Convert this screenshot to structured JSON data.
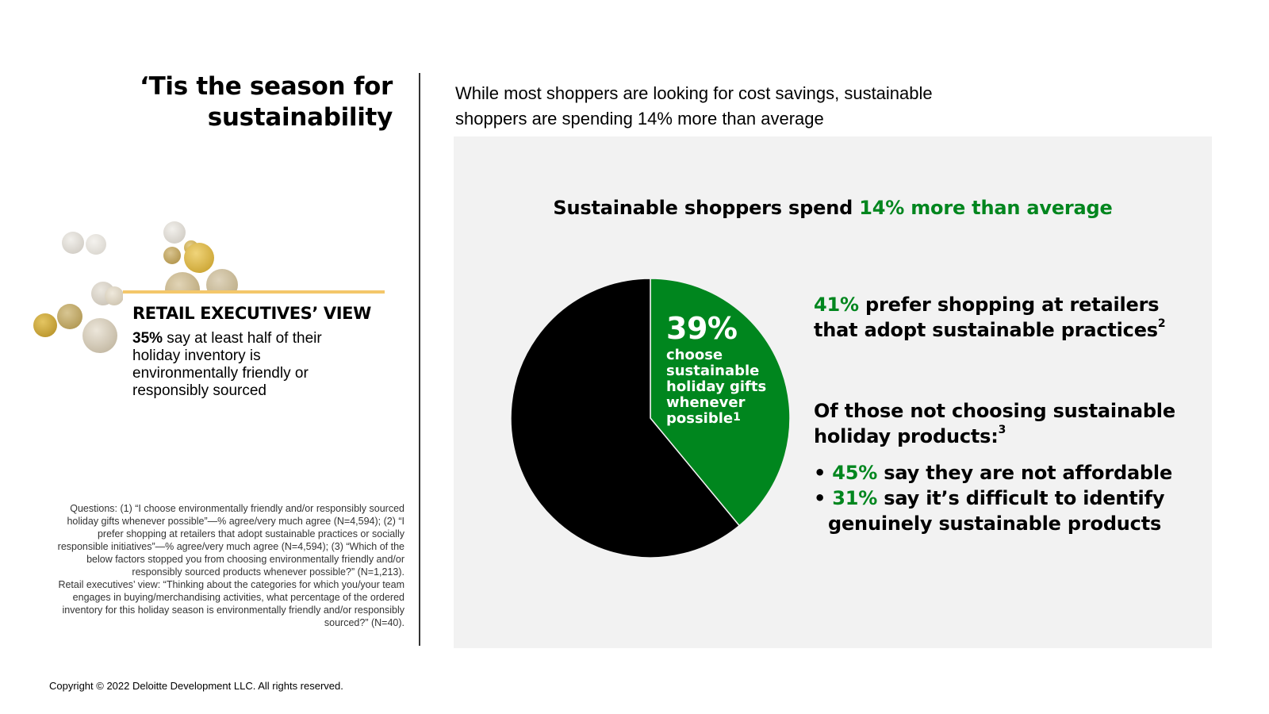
{
  "title": {
    "line1": "‘Tis the season for",
    "line2": "sustainability"
  },
  "subtitle": {
    "line1": "While most shoppers are looking for cost savings, sustainable",
    "line2": "shoppers are spending 14% more than average"
  },
  "executive_view": {
    "heading": "RETAIL EXECUTIVES’ VIEW",
    "stat": "35%",
    "text": " say at least half of their holiday inventory is environmentally friendly or responsibly sourced",
    "accent_color": "#f4c76a"
  },
  "panel": {
    "heading_prefix": "Sustainable shoppers spend ",
    "heading_highlight": "14% more than average",
    "background": "#f2f2f2"
  },
  "colors": {
    "green": "#00861e",
    "black": "#000000",
    "bubble_gold": "#c9a33e",
    "bubble_gray": "#c9c4bb"
  },
  "chart_data": {
    "type": "pie",
    "slices": [
      {
        "value": 39,
        "color": "#00861e"
      },
      {
        "value": 61,
        "color": "#000000"
      }
    ],
    "label": {
      "value": "39%",
      "text": "choose sustainable holiday gifts whenever possible",
      "footnote": "1"
    }
  },
  "stats": {
    "prefer": {
      "value": "41%",
      "text": " prefer shopping at retailers that adopt sustainable practices",
      "footnote": "2"
    },
    "not_choosing_heading": {
      "text": "Of those not choosing sustainable holiday products:",
      "footnote": "3"
    },
    "reasons": [
      {
        "value": "45%",
        "text": " say they are not affordable"
      },
      {
        "value": "31%",
        "text": " say it’s difficult to identify genuinely sustainable products"
      }
    ]
  },
  "notes": {
    "questions": "Questions: (1) “I choose environmentally friendly and/or responsibly sourced holiday gifts whenever possible”—% agree/very much agree (N=4,594); (2) “I prefer shopping at retailers that adopt sustainable practices or socially responsible initiatives”—% agree/very much agree (N=4,594); (3) “Which of the below factors stopped you from choosing environmentally friendly and/or responsibly sourced products whenever possible?” (N=1,213).",
    "executives": "Retail executives’ view: “Thinking about the categories for which you/your team engages in buying/merchandising activities, what percentage of the ordered inventory for this holiday season is environmentally friendly and/or responsibly sourced?” (N=40)."
  },
  "copyright": "Copyright © 2022 Deloitte Development LLC. All rights reserved."
}
